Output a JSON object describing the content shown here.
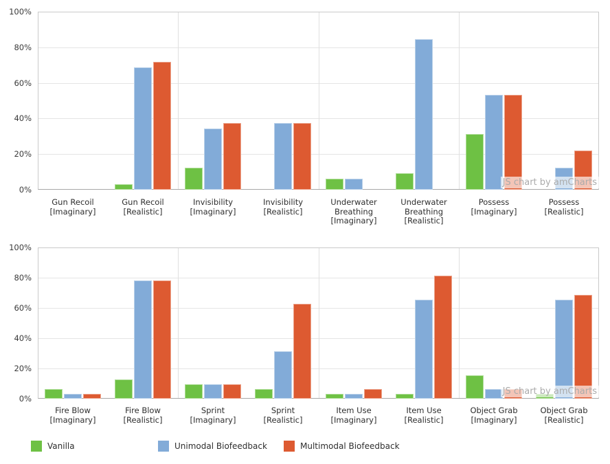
{
  "watermark": "JS chart by amCharts",
  "colors": {
    "vanilla": "#6EC144",
    "unimodal": "#82ABD8",
    "multimodal": "#DD5A31",
    "gridline": "#E5E5E5",
    "plot_border": "#C9C9C9",
    "category_axis_line": "#A8A8A8",
    "axis_label": "#3A3A3A"
  },
  "legend": {
    "items": [
      {
        "name": "Vanilla",
        "color": "#6EC144"
      },
      {
        "name": "Unimodal Biofeedback",
        "color": "#82ABD8"
      },
      {
        "name": "Multimodal Biofeedback",
        "color": "#DD5A31"
      }
    ]
  },
  "chart_data": [
    {
      "type": "bar",
      "title": "",
      "xlabel": "",
      "ylabel": "",
      "ylim": [
        0,
        100
      ],
      "y_ticks": [
        "0%",
        "20%",
        "40%",
        "60%",
        "80%",
        "100%"
      ],
      "grid": true,
      "legend_position": "bottom-shared",
      "categories": [
        "Gun Recoil [Imaginary]",
        "Gun Recoil [Realistic]",
        "Invisibility [Imaginary]",
        "Invisibility [Realistic]",
        "Underwater Breathing [Imaginary]",
        "Underwater Breathing [Realistic]",
        "Possess [Imaginary]",
        "Possess [Realistic]"
      ],
      "category_lines": [
        [
          "Gun Recoil",
          "[Imaginary]"
        ],
        [
          "Gun Recoil",
          "[Realistic]"
        ],
        [
          "Invisibility",
          "[Imaginary]"
        ],
        [
          "Invisibility",
          "[Realistic]"
        ],
        [
          "Underwater",
          "Breathing",
          "[Imaginary]"
        ],
        [
          "Underwater",
          "Breathing",
          "[Realistic]"
        ],
        [
          "Possess",
          "[Imaginary]"
        ],
        [
          "Possess",
          "[Realistic]"
        ]
      ],
      "series": [
        {
          "name": "Vanilla",
          "color": "#6EC144",
          "values": [
            0,
            3.1,
            12.5,
            0,
            6.3,
            9.4,
            31.3,
            0
          ]
        },
        {
          "name": "Unimodal Biofeedback",
          "color": "#82ABD8",
          "values": [
            0,
            68.8,
            34.4,
            37.5,
            6.3,
            84.4,
            53.1,
            12.5
          ]
        },
        {
          "name": "Multimodal Biofeedback",
          "color": "#DD5A31",
          "values": [
            0,
            71.9,
            37.5,
            37.5,
            0,
            0,
            53.1,
            21.9
          ]
        }
      ]
    },
    {
      "type": "bar",
      "title": "",
      "xlabel": "",
      "ylabel": "",
      "ylim": [
        0,
        100
      ],
      "y_ticks": [
        "0%",
        "20%",
        "40%",
        "60%",
        "80%",
        "100%"
      ],
      "grid": true,
      "legend_position": "bottom-shared",
      "categories": [
        "Fire Blow [Imaginary]",
        "Fire Blow [Realistic]",
        "Sprint [Imaginary]",
        "Sprint [Realistic]",
        "Item Use [Imaginary]",
        "Item Use [Realistic]",
        "Object Grab [Imaginary]",
        "Object Grab [Realistic]"
      ],
      "category_lines": [
        [
          "Fire Blow",
          "[Imaginary]"
        ],
        [
          "Fire Blow",
          "[Realistic]"
        ],
        [
          "Sprint",
          "[Imaginary]"
        ],
        [
          "Sprint",
          "[Realistic]"
        ],
        [
          "Item Use",
          "[Imaginary]"
        ],
        [
          "Item Use",
          "[Realistic]"
        ],
        [
          "Object Grab",
          "[Imaginary]"
        ],
        [
          "Object Grab",
          "[Realistic]"
        ]
      ],
      "series": [
        {
          "name": "Vanilla",
          "color": "#6EC144",
          "values": [
            6.3,
            12.5,
            9.4,
            6.3,
            3.1,
            3.1,
            15.6,
            3.1
          ]
        },
        {
          "name": "Unimodal Biofeedback",
          "color": "#82ABD8",
          "values": [
            3.1,
            78.1,
            9.4,
            31.3,
            3.1,
            65.6,
            6.3,
            65.6
          ]
        },
        {
          "name": "Multimodal Biofeedback",
          "color": "#DD5A31",
          "values": [
            3.1,
            78.1,
            9.4,
            62.5,
            6.3,
            81.3,
            6.3,
            68.8
          ]
        }
      ]
    }
  ]
}
